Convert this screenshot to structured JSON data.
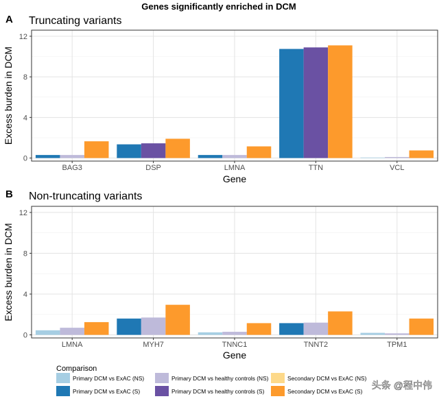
{
  "figure_title": "Genes significantly enriched in DCM",
  "watermark": "头条 @程中伟",
  "colors": {
    "primary_exac_ns": "#a6cee3",
    "primary_exac_s": "#1f78b4",
    "primary_hc_ns": "#bebada",
    "primary_hc_s": "#6a51a3",
    "secondary_exac_ns": "#fdd98a",
    "secondary_exac_s": "#fd9a2c"
  },
  "legend": {
    "title": "Comparison",
    "items": [
      {
        "label": "Primary DCM vs ExAC (NS)",
        "color_key": "primary_exac_ns"
      },
      {
        "label": "Primary DCM vs healthy controls (NS)",
        "color_key": "primary_hc_ns"
      },
      {
        "label": "Secondary DCM vs ExAC (NS)",
        "color_key": "secondary_exac_ns"
      },
      {
        "label": "Primary DCM vs ExAC (S)",
        "color_key": "primary_exac_s"
      },
      {
        "label": "Primary DCM vs healthy controls (S)",
        "color_key": "primary_hc_s"
      },
      {
        "label": "Secondary DCM vs ExAC (S)",
        "color_key": "secondary_exac_s"
      }
    ]
  },
  "chart_data": [
    {
      "type": "bar",
      "panel_letter": "A",
      "title": "Truncating variants",
      "xlabel": "Gene",
      "ylabel": "Excess burden in DCM",
      "ylim": [
        -0.3,
        12.6
      ],
      "yticks": [
        0,
        4,
        8,
        12
      ],
      "grid": true,
      "categories": [
        "BAG3",
        "DSP",
        "LMNA",
        "TTN",
        "VCL"
      ],
      "series": [
        {
          "name": "Primary DCM vs ExAC",
          "values": [
            0.3,
            1.35,
            0.3,
            10.75,
            0.05
          ],
          "significant": [
            true,
            true,
            true,
            true,
            false
          ]
        },
        {
          "name": "Primary DCM vs healthy controls",
          "values": [
            0.3,
            1.45,
            0.3,
            10.9,
            0.1
          ],
          "significant": [
            false,
            true,
            false,
            true,
            false
          ]
        },
        {
          "name": "Secondary DCM vs ExAC",
          "values": [
            1.65,
            1.9,
            1.15,
            11.1,
            0.75
          ],
          "significant": [
            true,
            true,
            true,
            true,
            true
          ]
        }
      ]
    },
    {
      "type": "bar",
      "panel_letter": "B",
      "title": "Non-truncating variants",
      "xlabel": "Gene",
      "ylabel": "Excess burden in DCM",
      "ylim": [
        -0.3,
        12.6
      ],
      "yticks": [
        0,
        4,
        8,
        12
      ],
      "grid": true,
      "categories": [
        "LMNA",
        "MYH7",
        "TNNC1",
        "TNNT2",
        "TPM1"
      ],
      "series": [
        {
          "name": "Primary DCM vs ExAC",
          "values": [
            0.45,
            1.6,
            0.25,
            1.15,
            0.2
          ],
          "significant": [
            false,
            true,
            false,
            true,
            false
          ]
        },
        {
          "name": "Primary DCM vs healthy controls",
          "values": [
            0.7,
            1.7,
            0.3,
            1.2,
            0.15
          ],
          "significant": [
            false,
            false,
            false,
            false,
            false
          ]
        },
        {
          "name": "Secondary DCM vs ExAC",
          "values": [
            1.25,
            2.95,
            1.15,
            2.3,
            1.6
          ],
          "significant": [
            true,
            true,
            true,
            true,
            true
          ]
        }
      ]
    }
  ]
}
